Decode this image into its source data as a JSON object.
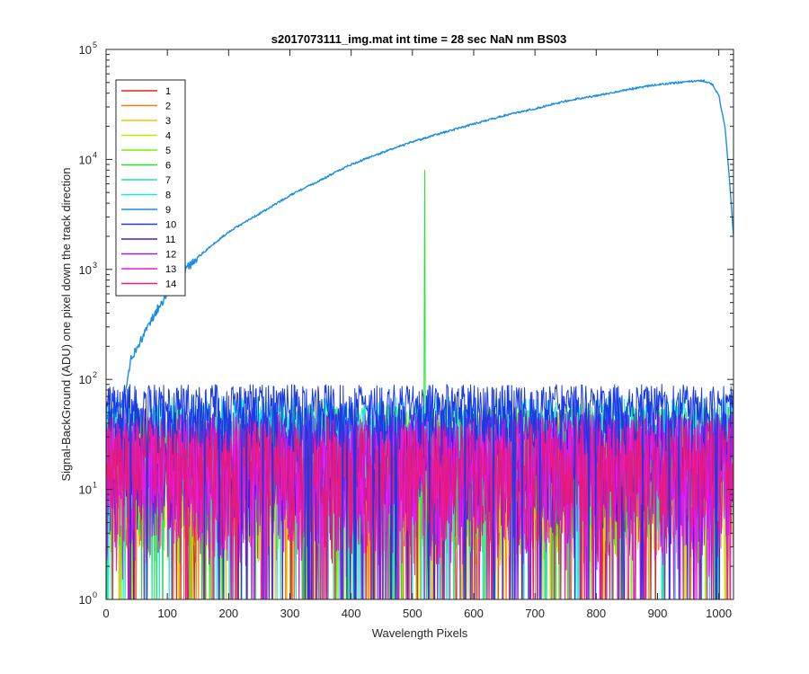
{
  "chart_data": {
    "type": "line",
    "title": "s2017073111_img.mat int time = 28 sec  NaN nm BS03",
    "xlabel": "Wavelength Pixels",
    "ylabel": "Signal-BackGround (ADU) one pixel down the track direction",
    "xlim": [
      0,
      1024
    ],
    "ylim": [
      1,
      100000
    ],
    "yscale": "log",
    "grid": false,
    "legend_position": "top-left",
    "x_ticks": [
      "0",
      "100",
      "200",
      "300",
      "400",
      "500",
      "600",
      "700",
      "800",
      "900",
      "1000"
    ],
    "y_ticks": [
      {
        "base": "10",
        "exp": "0"
      },
      {
        "base": "10",
        "exp": "1"
      },
      {
        "base": "10",
        "exp": "2"
      },
      {
        "base": "10",
        "exp": "3"
      },
      {
        "base": "10",
        "exp": "4"
      },
      {
        "base": "10",
        "exp": "5"
      }
    ],
    "series": [
      {
        "name": "1",
        "color": "#e8231c",
        "kind": "noise",
        "band": [
          2,
          45
        ]
      },
      {
        "name": "2",
        "color": "#f57a12",
        "kind": "noise",
        "band": [
          2,
          45
        ]
      },
      {
        "name": "3",
        "color": "#f5c400",
        "kind": "noise",
        "band": [
          2,
          45
        ]
      },
      {
        "name": "4",
        "color": "#c8e600",
        "kind": "noise",
        "band": [
          2,
          50
        ]
      },
      {
        "name": "5",
        "color": "#76ee00",
        "kind": "noise",
        "band": [
          2,
          55
        ]
      },
      {
        "name": "6",
        "color": "#1ee62d",
        "kind": "noise_spike",
        "band": [
          2,
          60
        ],
        "spike": {
          "x": 520,
          "y": 8000
        }
      },
      {
        "name": "7",
        "color": "#1ee6a0",
        "kind": "noise",
        "band": [
          3,
          60
        ]
      },
      {
        "name": "8",
        "color": "#1ee6e6",
        "kind": "noise",
        "band": [
          4,
          70
        ]
      },
      {
        "name": "9",
        "color": "#1a8ee6",
        "kind": "curve",
        "points": [
          [
            0,
            45
          ],
          [
            25,
            60
          ],
          [
            32,
            75
          ],
          [
            40,
            150
          ],
          [
            60,
            250
          ],
          [
            80,
            400
          ],
          [
            100,
            600
          ],
          [
            130,
            1000
          ],
          [
            150,
            1300
          ],
          [
            200,
            2200
          ],
          [
            250,
            3200
          ],
          [
            300,
            4700
          ],
          [
            350,
            6500
          ],
          [
            400,
            9000
          ],
          [
            450,
            11500
          ],
          [
            500,
            14500
          ],
          [
            550,
            17500
          ],
          [
            600,
            21000
          ],
          [
            650,
            25000
          ],
          [
            700,
            29000
          ],
          [
            750,
            34000
          ],
          [
            800,
            38000
          ],
          [
            850,
            43000
          ],
          [
            900,
            48000
          ],
          [
            950,
            51000
          ],
          [
            975,
            52000
          ],
          [
            990,
            48000
          ],
          [
            1000,
            38000
          ],
          [
            1010,
            20000
          ],
          [
            1018,
            6000
          ],
          [
            1024,
            2000
          ]
        ]
      },
      {
        "name": "10",
        "color": "#1a3ae6",
        "kind": "noise",
        "band": [
          20,
          90
        ]
      },
      {
        "name": "11",
        "color": "#4a1ae6",
        "kind": "noise",
        "band": [
          3,
          55
        ]
      },
      {
        "name": "12",
        "color": "#a01ae6",
        "kind": "noise",
        "band": [
          2,
          50
        ]
      },
      {
        "name": "13",
        "color": "#e61ae6",
        "kind": "noise",
        "band": [
          1.5,
          50
        ]
      },
      {
        "name": "14",
        "color": "#e61a78",
        "kind": "noise",
        "band": [
          2,
          45
        ]
      }
    ]
  }
}
